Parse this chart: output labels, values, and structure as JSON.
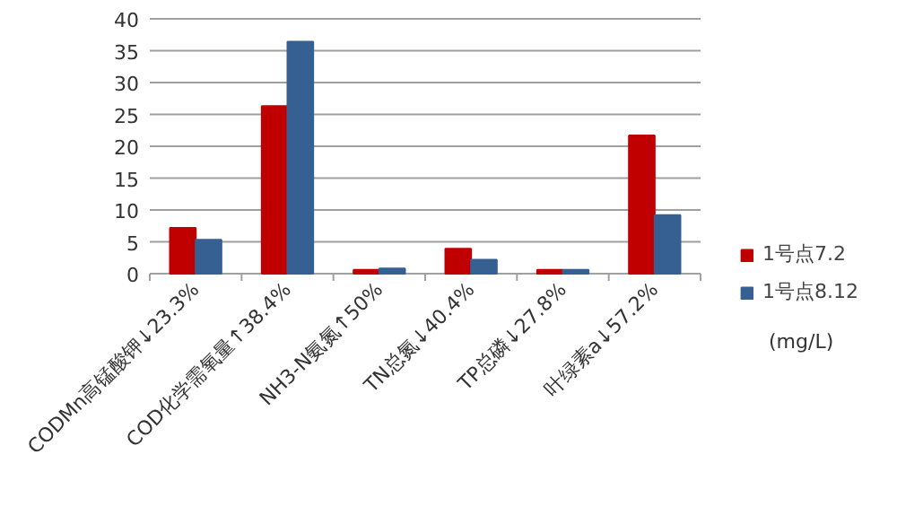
{
  "chart_data": {
    "type": "bar",
    "categories": [
      "CODMn高锰酸钾↓23.3%",
      "COD化学需氧量↑38.4%",
      "NH3-N氨氮↑50%",
      "TN总氮↓40.4%",
      "TP总磷↓27.8%",
      "叶绿素a↓57.2%"
    ],
    "series": [
      {
        "name": "1号点7.2",
        "color": "#c00000",
        "values": [
          7.2,
          26.3,
          0.6,
          3.9,
          0.6,
          21.7
        ]
      },
      {
        "name": "1号点8.12",
        "color": "#376092",
        "values": [
          5.3,
          36.4,
          0.8,
          2.2,
          0.6,
          9.2
        ]
      }
    ],
    "ylim": [
      0,
      40
    ],
    "yticks": [
      0,
      5,
      10,
      15,
      20,
      25,
      30,
      35,
      40
    ],
    "grid": "y",
    "legend": "right",
    "annotations": [
      "(mg/L)"
    ]
  }
}
